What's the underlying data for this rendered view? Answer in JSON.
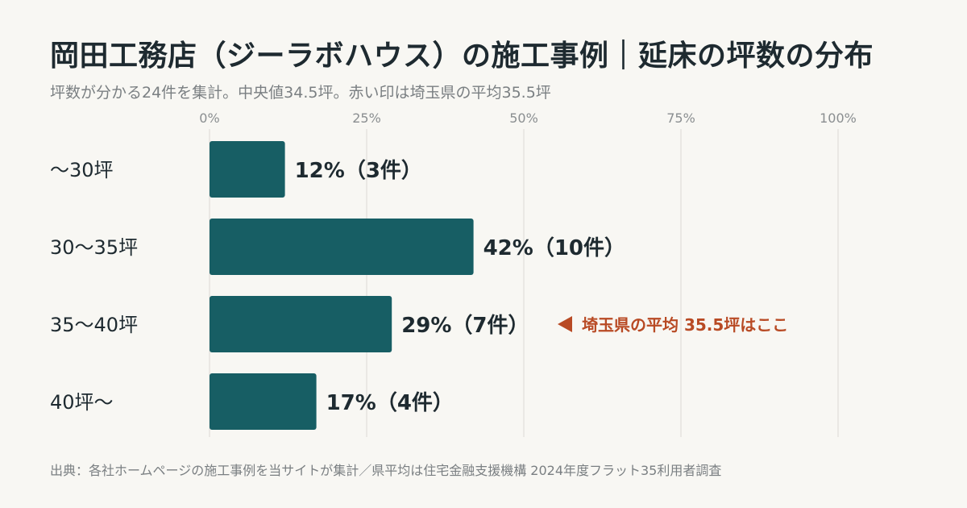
{
  "title": "岡田工務店（ジーラボハウス）の施工事例｜延床の坪数の分布",
  "subtitle": "坪数が分かる24件を集計。中央値34.5坪。赤い印は埼玉県の平均35.5坪",
  "footer": "出典：各社ホームページの施工事例を当サイトが集計／県平均は住宅金融支援機構 2024年度フラット35利用者調査",
  "colors": {
    "bar": "#175e64",
    "grid": "#dcdad5",
    "annotation": "#b84a24"
  },
  "chart_data": {
    "type": "bar",
    "orientation": "horizontal",
    "categories": [
      "〜30坪",
      "30〜35坪",
      "35〜40坪",
      "40坪〜"
    ],
    "values": [
      12,
      42,
      29,
      17
    ],
    "value_labels": [
      "12%（3件）",
      "42%（10件）",
      "29%（7件）",
      "17%（4件）"
    ],
    "xlim": [
      0,
      100
    ],
    "xticks": [
      "0%",
      "25%",
      "50%",
      "75%",
      "100%"
    ],
    "xtick_values": [
      0,
      25,
      50,
      75,
      100
    ],
    "grid": true,
    "annotation": {
      "category_index": 2,
      "text": "埼玉県の平均 35.5坪はここ"
    }
  }
}
